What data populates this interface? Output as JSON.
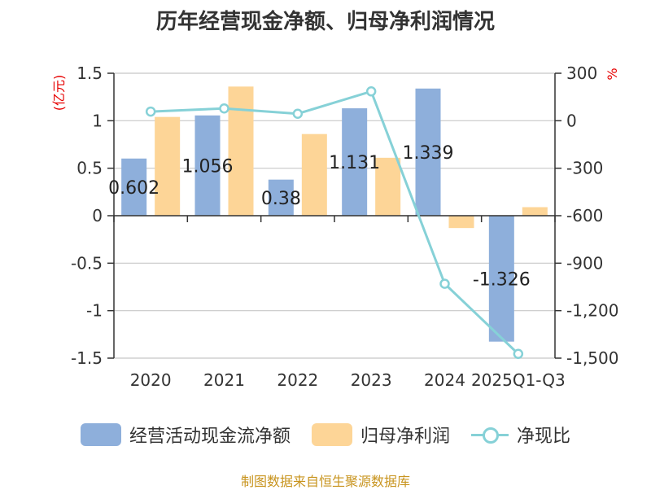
{
  "chart_data": {
    "type": "bar",
    "title": "历年经营现金净额、归母净利润情况",
    "categories": [
      "2020",
      "2021",
      "2022",
      "2023",
      "2024",
      "2025Q1-Q3"
    ],
    "left_unit": "(亿元)",
    "right_unit": "%",
    "y_left": {
      "ylim": [
        -1.5,
        1.5
      ],
      "ticks": [
        "1.5",
        "1",
        "0.5",
        "0",
        "-0.5",
        "-1",
        "-1.5"
      ],
      "tick_values": [
        1.5,
        1,
        0.5,
        0,
        -0.5,
        -1,
        -1.5
      ]
    },
    "y_right": {
      "ylim": [
        -1500,
        300
      ],
      "ticks": [
        "300",
        "0",
        "-300",
        "-600",
        "-900",
        "-1,200",
        "-1,500"
      ],
      "tick_values": [
        300,
        0,
        -300,
        -600,
        -900,
        -1200,
        -1500
      ]
    },
    "grid": true,
    "legend_position": "bottom",
    "series": [
      {
        "name": "经营活动现金流净额",
        "kind": "bar",
        "axis": "left",
        "color": "#8eafdb",
        "values": [
          0.602,
          1.056,
          0.38,
          1.131,
          1.339,
          -1.326
        ],
        "labels": [
          "0.602",
          "1.056",
          "0.38",
          "1.131",
          "1.339",
          "-1.326"
        ]
      },
      {
        "name": "归母净利润",
        "kind": "bar",
        "axis": "left",
        "color": "#fdd597",
        "values": [
          1.04,
          1.36,
          0.86,
          0.61,
          -0.13,
          0.09
        ]
      },
      {
        "name": "净现比",
        "kind": "line",
        "axis": "right",
        "color": "#86d1d7",
        "values": [
          57.9,
          77.6,
          44.2,
          185.4,
          -1030,
          -1473
        ]
      }
    ]
  },
  "source_text": "制图数据来自恒生聚源数据库"
}
